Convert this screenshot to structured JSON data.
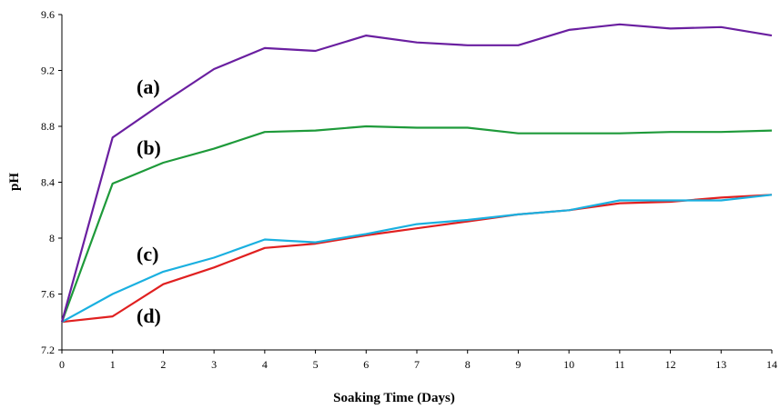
{
  "chart_data": {
    "type": "line",
    "title": "",
    "xlabel": "Soaking Time (Days)",
    "ylabel": "pH",
    "xlim": [
      0,
      14
    ],
    "ylim": [
      7.2,
      9.6
    ],
    "xticks": [
      "0",
      "1",
      "2",
      "3",
      "4",
      "5",
      "6",
      "7",
      "8",
      "9",
      "10",
      "11",
      "12",
      "13",
      "14"
    ],
    "yticks": [
      "7.2",
      "7.6",
      "8",
      "8.4",
      "8.8",
      "9.2",
      "9.6"
    ],
    "grid": false,
    "legend": "none",
    "x": [
      0,
      1,
      2,
      3,
      4,
      5,
      6,
      7,
      8,
      9,
      10,
      11,
      12,
      13,
      14
    ],
    "series": [
      {
        "name": "(a)",
        "color": "#6a1fa0",
        "values": [
          7.4,
          8.72,
          8.97,
          9.21,
          9.36,
          9.34,
          9.45,
          9.4,
          9.38,
          9.38,
          9.49,
          9.53,
          9.5,
          9.51,
          9.45
        ]
      },
      {
        "name": "(b)",
        "color": "#1e9a3a",
        "values": [
          7.4,
          8.39,
          8.54,
          8.64,
          8.76,
          8.77,
          8.8,
          8.79,
          8.79,
          8.75,
          8.75,
          8.75,
          8.76,
          8.76,
          8.77
        ]
      },
      {
        "name": "(c)",
        "color": "#1ab0e0",
        "values": [
          7.4,
          7.6,
          7.76,
          7.86,
          7.99,
          7.97,
          8.03,
          8.1,
          8.13,
          8.17,
          8.2,
          8.27,
          8.27,
          8.27,
          8.31
        ]
      },
      {
        "name": "(d)",
        "color": "#e02020",
        "values": [
          7.4,
          7.44,
          7.67,
          7.79,
          7.93,
          7.96,
          8.02,
          8.07,
          8.12,
          8.17,
          8.2,
          8.25,
          8.26,
          8.29,
          8.31
        ]
      }
    ]
  }
}
